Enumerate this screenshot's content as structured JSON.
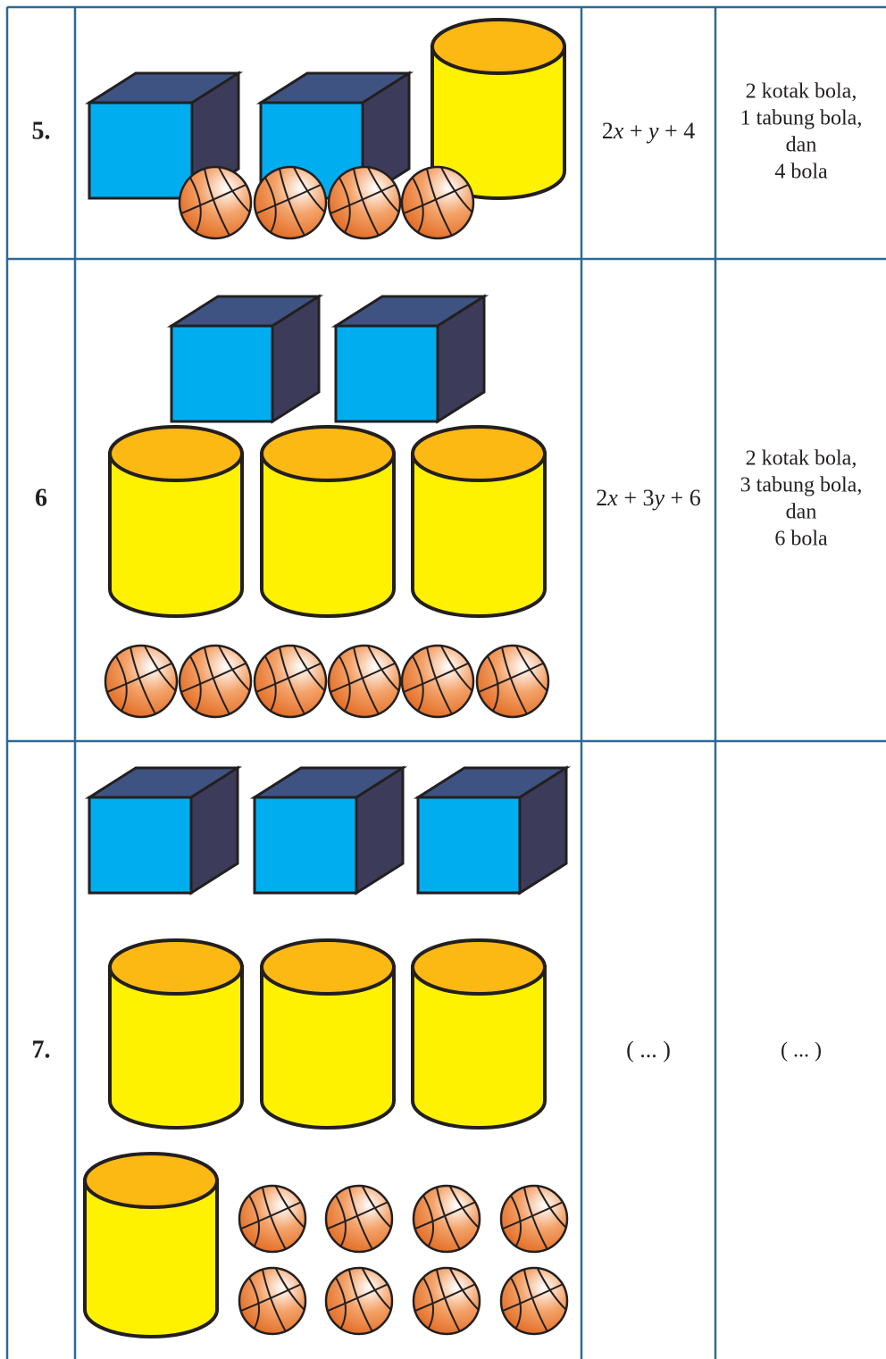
{
  "table": {
    "rows": [
      {
        "number": "5.",
        "expression": "2x + y + 4",
        "description": [
          "2 kotak bola,",
          "1 tabung bola,",
          "dan",
          "4 bola"
        ]
      },
      {
        "number": "6",
        "expression": "2x + 3y + 6",
        "description": [
          "2 kotak bola,",
          "3 tabung bola,",
          "dan",
          "6 bola"
        ]
      },
      {
        "number": "7.",
        "expression": "( ... )",
        "description": [
          "( ... )"
        ]
      }
    ]
  }
}
